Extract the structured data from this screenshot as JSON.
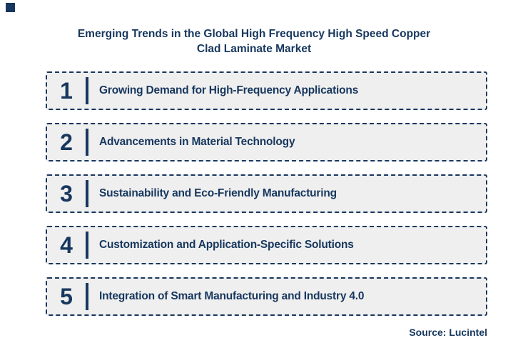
{
  "page": {
    "title_line1": "Emerging Trends in the Global High Frequency High Speed Copper",
    "title_line2": "Clad Laminate Market",
    "source": "Source: Lucintel"
  },
  "trends": [
    {
      "number": "1",
      "label": "Growing Demand for High-Frequency Applications"
    },
    {
      "number": "2",
      "label": "Advancements in Material Technology"
    },
    {
      "number": "3",
      "label": "Sustainability and Eco-Friendly Manufacturing"
    },
    {
      "number": "4",
      "label": "Customization and Application-Specific Solutions"
    },
    {
      "number": "5",
      "label": "Integration of Smart Manufacturing and Industry 4.0"
    }
  ],
  "colors": {
    "navy": "#17375E",
    "row_fill": "#EFEFEF",
    "background": "#FFFFFF"
  }
}
